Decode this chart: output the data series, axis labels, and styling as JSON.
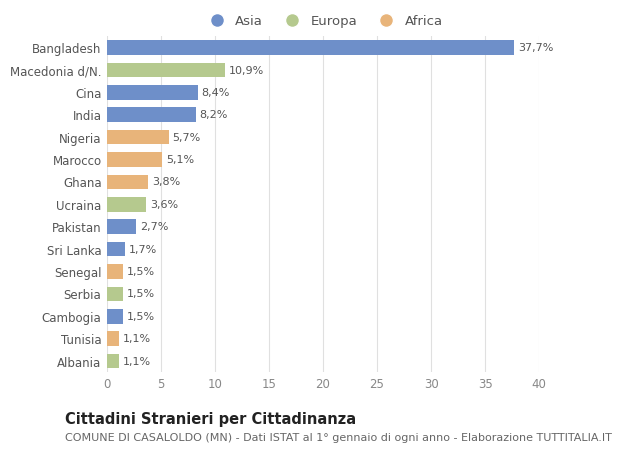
{
  "countries": [
    "Bangladesh",
    "Macedonia d/N.",
    "Cina",
    "India",
    "Nigeria",
    "Marocco",
    "Ghana",
    "Ucraina",
    "Pakistan",
    "Sri Lanka",
    "Senegal",
    "Serbia",
    "Cambogia",
    "Tunisia",
    "Albania"
  ],
  "values": [
    37.7,
    10.9,
    8.4,
    8.2,
    5.7,
    5.1,
    3.8,
    3.6,
    2.7,
    1.7,
    1.5,
    1.5,
    1.5,
    1.1,
    1.1
  ],
  "labels": [
    "37,7%",
    "10,9%",
    "8,4%",
    "8,2%",
    "5,7%",
    "5,1%",
    "3,8%",
    "3,6%",
    "2,7%",
    "1,7%",
    "1,5%",
    "1,5%",
    "1,5%",
    "1,1%",
    "1,1%"
  ],
  "continents": [
    "Asia",
    "Europa",
    "Asia",
    "Asia",
    "Africa",
    "Africa",
    "Africa",
    "Europa",
    "Asia",
    "Asia",
    "Africa",
    "Europa",
    "Asia",
    "Africa",
    "Europa"
  ],
  "colors": {
    "Asia": "#6e8fc9",
    "Europa": "#b5c98e",
    "Africa": "#e8b47a"
  },
  "legend_order": [
    "Asia",
    "Europa",
    "Africa"
  ],
  "title": "Cittadini Stranieri per Cittadinanza",
  "subtitle": "COMUNE DI CASALOLDO (MN) - Dati ISTAT al 1° gennaio di ogni anno - Elaborazione TUTTITALIA.IT",
  "xlim": [
    0,
    40
  ],
  "xticks": [
    0,
    5,
    10,
    15,
    20,
    25,
    30,
    35,
    40
  ],
  "bg_color": "#ffffff",
  "grid_color": "#e0e0e0",
  "bar_height": 0.65,
  "title_fontsize": 10.5,
  "subtitle_fontsize": 8,
  "label_fontsize": 8,
  "tick_fontsize": 8.5,
  "legend_fontsize": 9.5
}
